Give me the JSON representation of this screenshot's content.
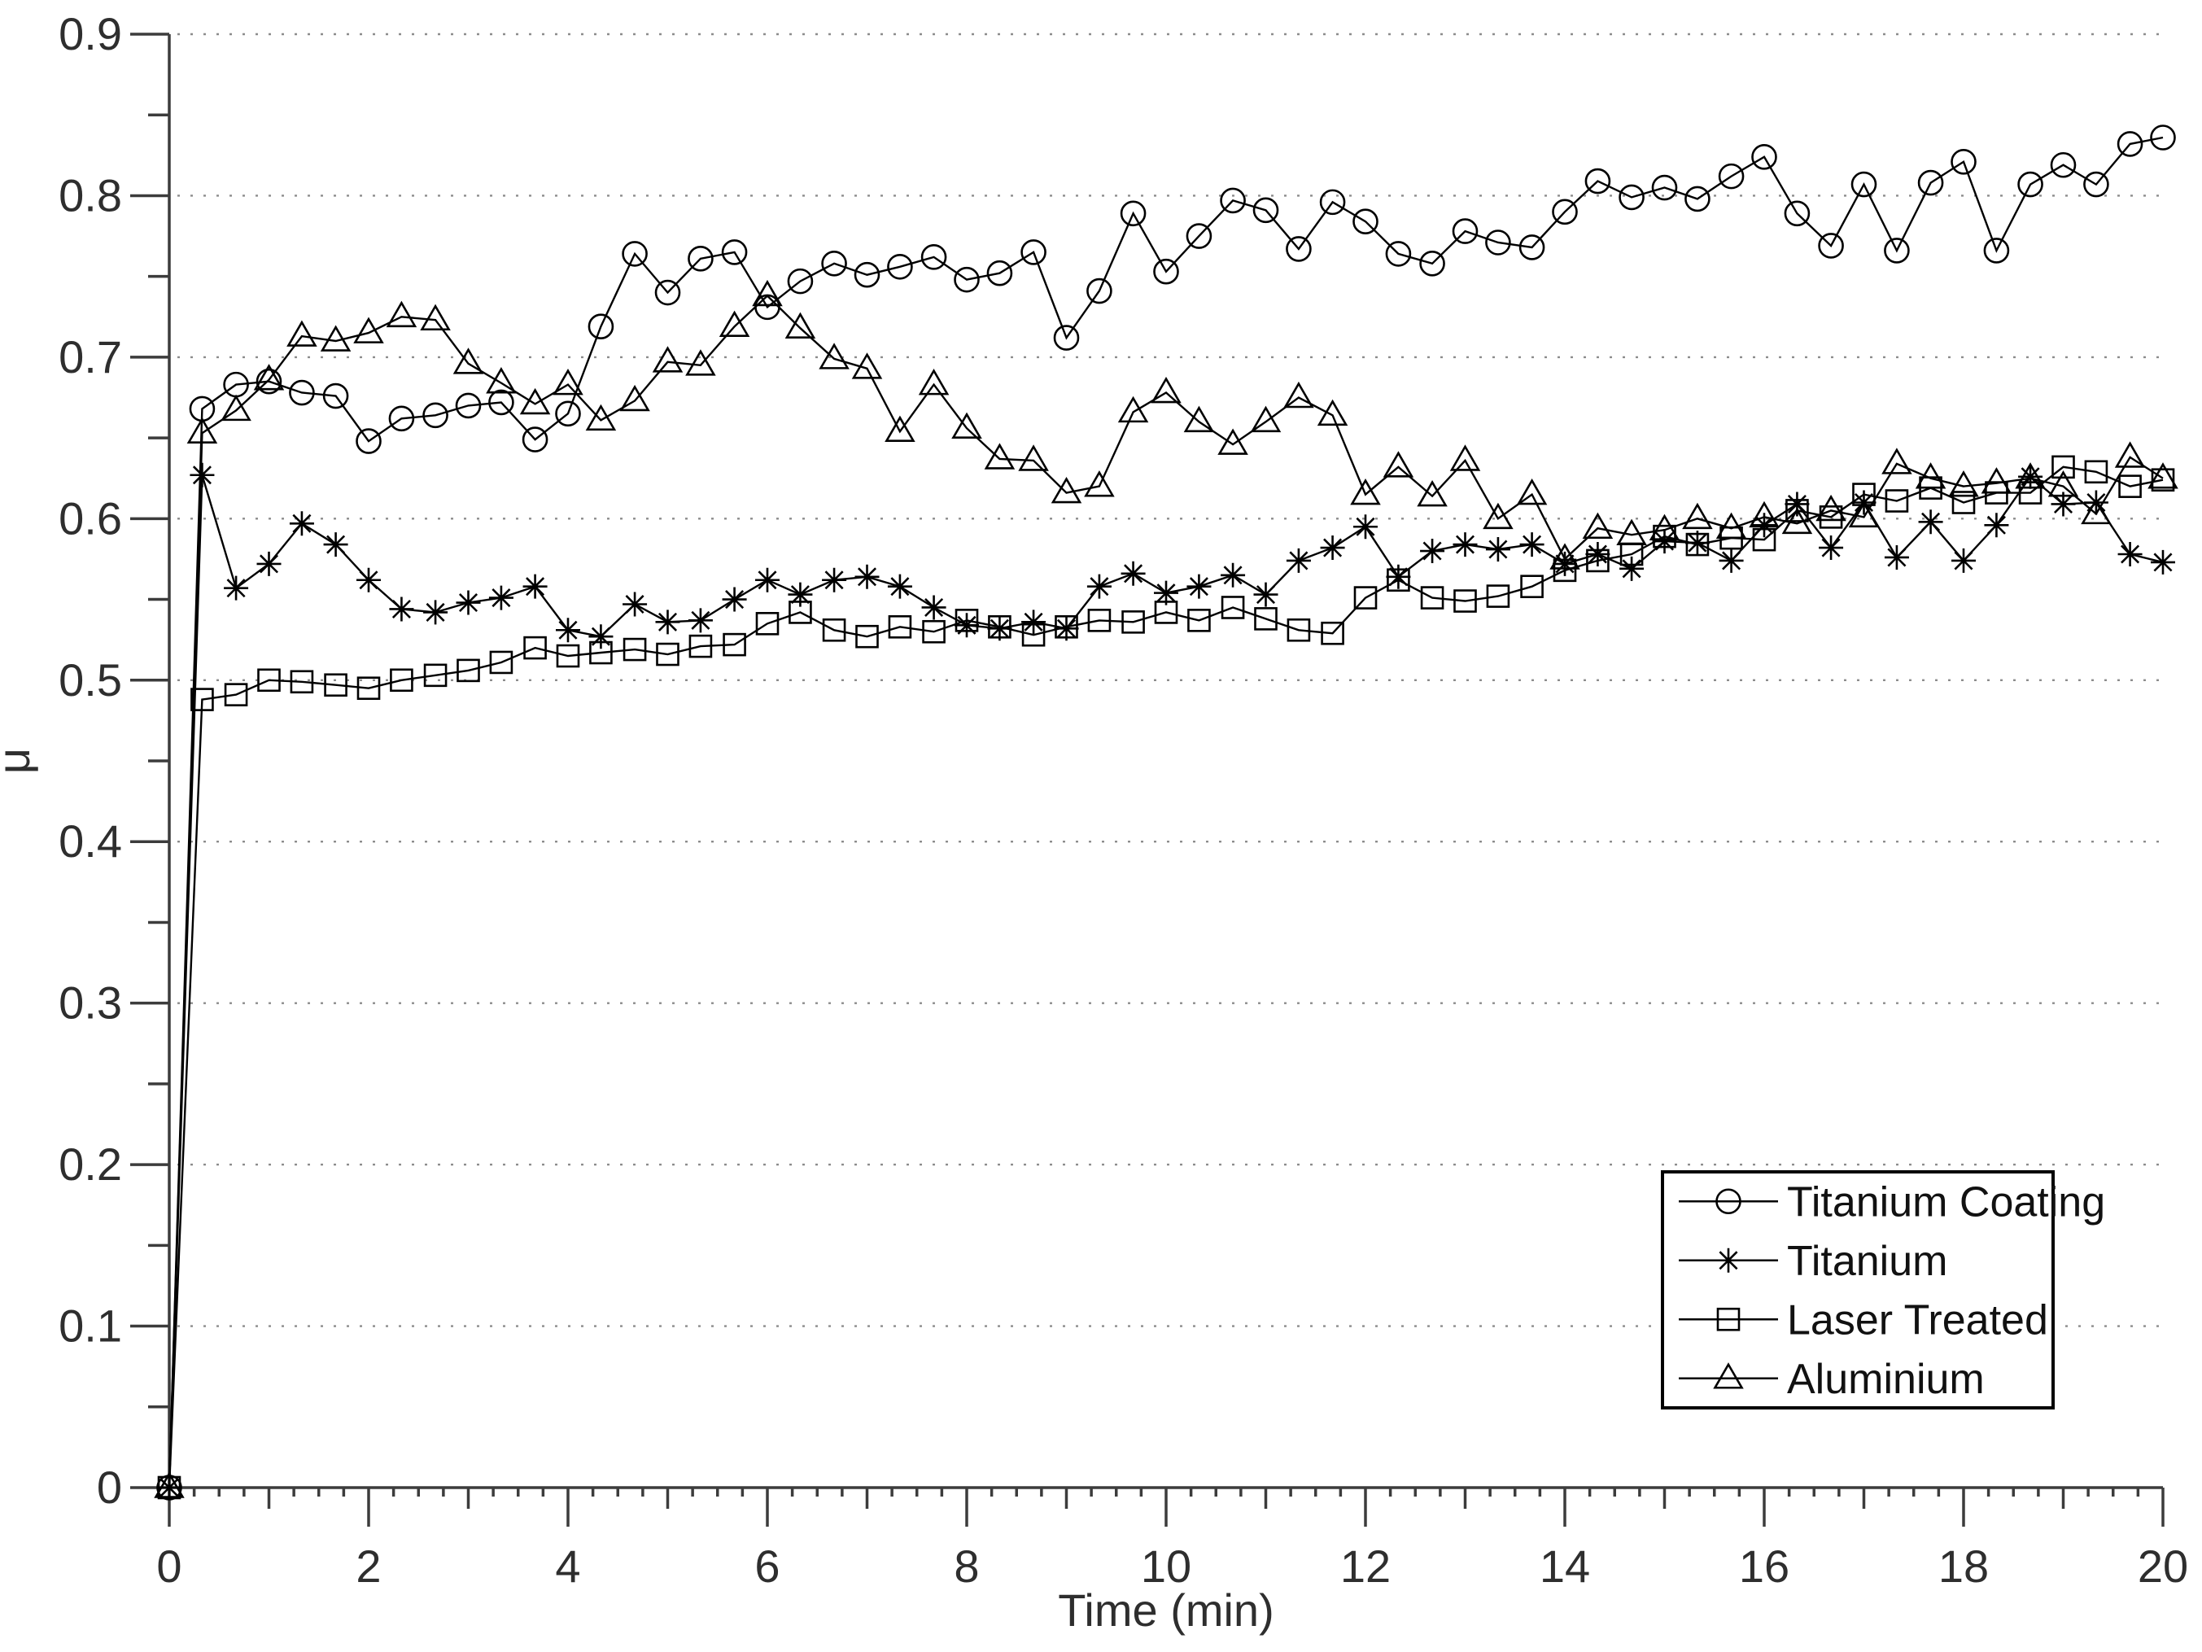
{
  "colors": {
    "background": "#ffffff",
    "series_line": "#000000",
    "axis": "#3c3c3c",
    "grid_dots": "#8c8c8c",
    "text": "#2e2e2e"
  },
  "axes": {
    "x": {
      "label": "Time (min)",
      "min": 0,
      "max": 20,
      "tick_values": [
        0,
        2,
        4,
        6,
        8,
        10,
        12,
        14,
        16,
        18,
        20
      ],
      "tick_labels": [
        "0",
        "2",
        "4",
        "6",
        "8",
        "10",
        "12",
        "14",
        "16",
        "18",
        "20"
      ],
      "medium_tick_step": 1,
      "minor_tick_step": 0.25
    },
    "y": {
      "label": "μ",
      "min": 0,
      "max": 0.9,
      "tick_values": [
        0,
        0.1,
        0.2,
        0.3,
        0.4,
        0.5,
        0.6,
        0.7,
        0.8,
        0.9
      ],
      "tick_labels": [
        "0",
        "0.1",
        "0.2",
        "0.3",
        "0.4",
        "0.5",
        "0.6",
        "0.7",
        "0.8",
        "0.9"
      ],
      "minor_tick_step": 0.05,
      "gridlines": "dotted"
    }
  },
  "legend": {
    "position": "lower-right",
    "items": [
      {
        "label": "Titanium Coating",
        "marker": "circle"
      },
      {
        "label": "Titanium",
        "marker": "asterisk"
      },
      {
        "label": "Laser Treated",
        "marker": "square"
      },
      {
        "label": "Aluminium",
        "marker": "triangle"
      }
    ]
  },
  "chart_data": {
    "type": "line",
    "title": "",
    "xlabel": "Time (min)",
    "ylabel": "μ",
    "xlim": [
      0,
      20
    ],
    "ylim": [
      0,
      0.9
    ],
    "grid": "horizontal-dotted",
    "legend_position": "lower-right",
    "marker_fill": "hollow",
    "series_color": "#000000",
    "x": [
      0,
      0.33,
      0.67,
      1,
      1.33,
      1.67,
      2,
      2.33,
      2.67,
      3,
      3.33,
      3.67,
      4,
      4.33,
      4.67,
      5,
      5.33,
      5.67,
      6,
      6.33,
      6.67,
      7,
      7.33,
      7.67,
      8,
      8.33,
      8.67,
      9,
      9.33,
      9.67,
      10,
      10.33,
      10.67,
      11,
      11.33,
      11.67,
      12,
      12.33,
      12.67,
      13,
      13.33,
      13.67,
      14,
      14.33,
      14.67,
      15,
      15.33,
      15.67,
      16,
      16.33,
      16.67,
      17,
      17.33,
      17.67,
      18,
      18.33,
      18.67,
      19,
      19.33,
      19.67,
      20
    ],
    "series": [
      {
        "name": "Titanium Coating",
        "marker": "circle",
        "values": [
          0,
          0.668,
          0.683,
          0.685,
          0.678,
          0.676,
          0.648,
          0.662,
          0.664,
          0.67,
          0.672,
          0.649,
          0.665,
          0.719,
          0.764,
          0.74,
          0.761,
          0.765,
          0.731,
          0.747,
          0.758,
          0.751,
          0.756,
          0.762,
          0.748,
          0.752,
          0.765,
          0.712,
          0.741,
          0.789,
          0.753,
          0.775,
          0.797,
          0.791,
          0.767,
          0.796,
          0.784,
          0.764,
          0.758,
          0.778,
          0.771,
          0.768,
          0.79,
          0.809,
          0.799,
          0.805,
          0.798,
          0.812,
          0.824,
          0.789,
          0.769,
          0.807,
          0.766,
          0.808,
          0.821,
          0.766,
          0.807,
          0.819,
          0.807,
          0.832,
          0.836
        ]
      },
      {
        "name": "Titanium",
        "marker": "asterisk",
        "values": [
          0,
          0.627,
          0.557,
          0.572,
          0.597,
          0.584,
          0.562,
          0.544,
          0.542,
          0.548,
          0.551,
          0.558,
          0.531,
          0.527,
          0.547,
          0.536,
          0.537,
          0.55,
          0.562,
          0.553,
          0.562,
          0.564,
          0.558,
          0.545,
          0.534,
          0.532,
          0.536,
          0.532,
          0.558,
          0.566,
          0.554,
          0.558,
          0.565,
          0.553,
          0.574,
          0.582,
          0.595,
          0.564,
          0.58,
          0.584,
          0.581,
          0.584,
          0.572,
          0.578,
          0.569,
          0.586,
          0.585,
          0.574,
          0.596,
          0.609,
          0.582,
          0.61,
          0.576,
          0.598,
          0.574,
          0.596,
          0.626,
          0.609,
          0.61,
          0.578,
          0.573
        ]
      },
      {
        "name": "Laser Treated",
        "marker": "square",
        "values": [
          0,
          0.488,
          0.491,
          0.5,
          0.499,
          0.497,
          0.495,
          0.5,
          0.503,
          0.506,
          0.511,
          0.52,
          0.515,
          0.517,
          0.519,
          0.516,
          0.521,
          0.522,
          0.535,
          0.542,
          0.531,
          0.527,
          0.533,
          0.53,
          0.537,
          0.533,
          0.528,
          0.533,
          0.537,
          0.536,
          0.542,
          0.537,
          0.545,
          0.538,
          0.531,
          0.529,
          0.551,
          0.562,
          0.551,
          0.549,
          0.552,
          0.558,
          0.568,
          0.574,
          0.578,
          0.589,
          0.584,
          0.588,
          0.587,
          0.605,
          0.601,
          0.615,
          0.611,
          0.619,
          0.61,
          0.616,
          0.616,
          0.632,
          0.629,
          0.62,
          0.624
        ]
      },
      {
        "name": "Aluminium",
        "marker": "triangle",
        "values": [
          0,
          0.653,
          0.667,
          0.686,
          0.713,
          0.71,
          0.715,
          0.725,
          0.723,
          0.696,
          0.684,
          0.671,
          0.683,
          0.661,
          0.673,
          0.697,
          0.695,
          0.719,
          0.738,
          0.718,
          0.699,
          0.693,
          0.654,
          0.683,
          0.656,
          0.637,
          0.636,
          0.616,
          0.62,
          0.666,
          0.678,
          0.66,
          0.646,
          0.66,
          0.675,
          0.664,
          0.615,
          0.632,
          0.614,
          0.636,
          0.6,
          0.615,
          0.575,
          0.594,
          0.59,
          0.593,
          0.6,
          0.594,
          0.601,
          0.597,
          0.605,
          0.601,
          0.634,
          0.625,
          0.62,
          0.622,
          0.625,
          0.62,
          0.603,
          0.638,
          0.625
        ]
      }
    ]
  }
}
